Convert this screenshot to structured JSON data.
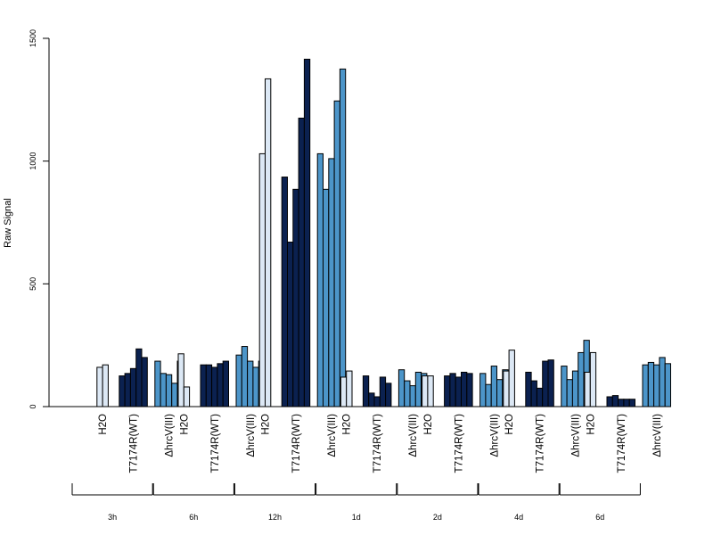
{
  "chart_data": {
    "type": "bar",
    "title": "",
    "xlabel": "",
    "ylabel": "Raw Signal",
    "ylim": [
      0,
      1500
    ],
    "yticks": [
      0,
      500,
      1000,
      1500
    ],
    "grid": false,
    "legend": "none",
    "colors": {
      "H2O": "#dce8f5",
      "T7174R(WT)": "#0b2150",
      "ΔhrcV(III)": "#4c95c9"
    },
    "categories": [
      "H2O",
      "T7174R(WT)",
      "ΔhrcV(III)"
    ],
    "timepoints": [
      "3h",
      "6h",
      "12h",
      "1d",
      "2d",
      "4d",
      "6d"
    ],
    "series": [
      {
        "time": "3h",
        "H2O": [
          160,
          170
        ],
        "T7174R(WT)": [
          125,
          135,
          155,
          235,
          200
        ],
        "ΔhrcV(III)": [
          185,
          135,
          130,
          95,
          185
        ]
      },
      {
        "time": "6h",
        "H2O": [
          215,
          80
        ],
        "T7174R(WT)": [
          170,
          170,
          160,
          175,
          185
        ],
        "ΔhrcV(III)": [
          210,
          245,
          185,
          160,
          185
        ]
      },
      {
        "time": "12h",
        "H2O": [
          1030,
          1335
        ],
        "T7174R(WT)": [
          935,
          670,
          885,
          1175,
          1415
        ],
        "ΔhrcV(III)": [
          1030,
          885,
          1010,
          1245,
          1375
        ]
      },
      {
        "time": "1d",
        "H2O": [
          120,
          145
        ],
        "T7174R(WT)": [
          125,
          55,
          40,
          120,
          95
        ],
        "ΔhrcV(III)": [
          150,
          105,
          85,
          140,
          135
        ]
      },
      {
        "time": "2d",
        "H2O": [
          125,
          125
        ],
        "T7174R(WT)": [
          125,
          135,
          120,
          140,
          135
        ],
        "ΔhrcV(III)": [
          135,
          90,
          165,
          110,
          150
        ]
      },
      {
        "time": "4d",
        "H2O": [
          145,
          230
        ],
        "T7174R(WT)": [
          140,
          105,
          75,
          185,
          190
        ],
        "ΔhrcV(III)": [
          165,
          110,
          145,
          220,
          270
        ]
      },
      {
        "time": "6d",
        "H2O": [
          140,
          220
        ],
        "T7174R(WT)": [
          40,
          45,
          30,
          30,
          30
        ],
        "ΔhrcV(III)": [
          170,
          180,
          170,
          200,
          175
        ]
      }
    ]
  }
}
